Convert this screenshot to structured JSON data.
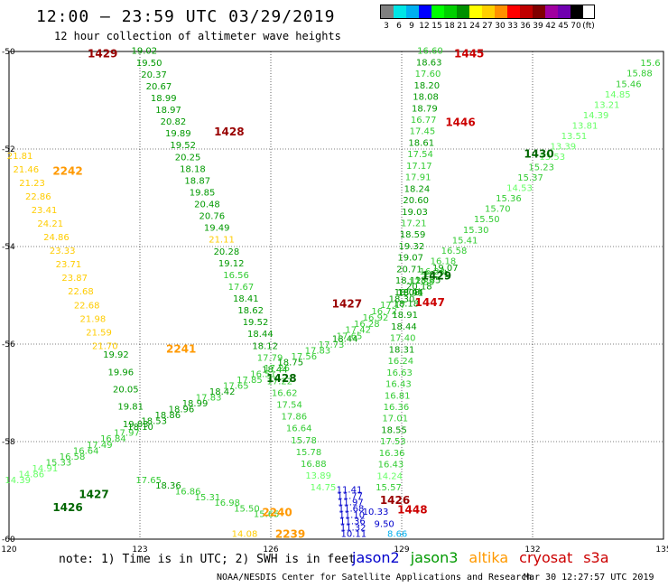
{
  "header": {
    "title": "12:00 — 23:59 UTC 03/29/2019",
    "subtitle": "12 hour collection of altimeter wave heights"
  },
  "colorbar": {
    "colors": [
      "#808080",
      "#00e6e6",
      "#00b0f0",
      "#0000ff",
      "#00ff00",
      "#00d000",
      "#009000",
      "#ffff00",
      "#ffd000",
      "#ff9000",
      "#ff0000",
      "#c00000",
      "#800000",
      "#a000a0",
      "#7000b0",
      "#000000"
    ],
    "labels": [
      "3",
      "6",
      "9",
      "12",
      "15",
      "18",
      "21",
      "24",
      "27",
      "30",
      "33",
      "36",
      "39",
      "42",
      "45",
      "70",
      "(ft)"
    ]
  },
  "footer": {
    "note": "note: 1) Time is in UTC; 2) SWH is in feet",
    "credit": "NOAA/NESDIS Center for Satellite Applications and Research",
    "timestamp": "Mar 30 12:27:57 UTC 2019",
    "satellites": [
      {
        "name": "jason2",
        "color": "#0000cc"
      },
      {
        "name": "jason3",
        "color": "#009900"
      },
      {
        "name": "altika",
        "color": "#ff9900"
      },
      {
        "name": "cryosat",
        "color": "#cc0000"
      },
      {
        "name": "s3a",
        "color": "#cc0000"
      }
    ]
  },
  "chart_data": {
    "type": "scatter",
    "xlim": [
      120,
      135
    ],
    "ylim": [
      -60,
      -50
    ],
    "x_ticks": [
      "120",
      "123",
      "126",
      "129",
      "132",
      "135"
    ],
    "y_ticks": [
      "-50",
      "-52",
      "-54",
      "-56",
      "-58",
      "-60"
    ],
    "grid": true,
    "tracks": [
      {
        "label": "1429",
        "label_color": "#990000",
        "label_pos": [
          121.8,
          -50.05
        ],
        "start": [
          123.1,
          -50.05
        ],
        "end": [
          127.2,
          -59.0
        ],
        "color": "#009900",
        "values": [
          "19.02",
          "19.50",
          "20.37",
          "20.67",
          "18.99",
          "18.97",
          "20.82",
          "19.89",
          "19.52",
          "20.25",
          "18.18",
          "18.87",
          "19.85",
          "20.48",
          "20.76",
          "19.49",
          "21.11",
          "20.28",
          "19.12",
          "16.56",
          "17.67",
          "18.41",
          "18.62",
          "19.52",
          "18.44",
          "18.12",
          "17.79",
          "18.44",
          "17.22",
          "16.62",
          "17.54",
          "17.86",
          "16.64",
          "15.78",
          "15.78",
          "16.88",
          "13.89",
          "14.75"
        ]
      },
      {
        "label": "1428",
        "label_color": "#990000",
        "label_pos": [
          124.7,
          -51.65
        ],
        "start": [
          120.2,
          -58.85
        ],
        "end": [
          127.7,
          -55.95
        ],
        "color": "#009900",
        "values": [
          "14.39",
          "14.86",
          "14.91",
          "15.33",
          "16.58",
          "16.64",
          "17.49",
          "16.84",
          "17.97",
          "18.10",
          "18.53",
          "18.86",
          "18.96",
          "18.99",
          "17.83",
          "18.42",
          "17.65",
          "17.85",
          "16.51",
          "17.26",
          "18.75",
          "17.56",
          "17.83",
          "17.73",
          "18.44"
        ]
      },
      {
        "label": "1427",
        "label_color": "#990000",
        "label_pos": [
          127.4,
          -55.18
        ],
        "start": [
          127.8,
          -55.9
        ],
        "end": [
          130.0,
          -54.5
        ],
        "color": "#33cc33",
        "values": [
          "17.65",
          "17.42",
          "16.28",
          "16.92",
          "16.72",
          "17.17",
          "18.30",
          "18.91",
          "20.18",
          "18.85",
          "20.71",
          "19.07"
        ]
      },
      {
        "label": "1445",
        "label_color": "#cc0000",
        "label_pos": [
          130.2,
          -50.05
        ],
        "start": [
          129.65,
          -50.05
        ],
        "end": [
          128.7,
          -59.0
        ],
        "color": "#009900",
        "values": [
          "16.60",
          "18.63",
          "17.60",
          "18.20",
          "18.08",
          "18.79",
          "16.77",
          "17.45",
          "18.61",
          "17.54",
          "17.17",
          "17.91",
          "18.24",
          "20.60",
          "19.03",
          "17.21",
          "18.59",
          "19.32",
          "19.07",
          "20.71",
          "18.12",
          "18.03",
          "18.18",
          "18.91",
          "18.44",
          "17.40",
          "18.31",
          "16.24",
          "16.63",
          "16.43",
          "16.81",
          "16.36",
          "17.01",
          "18.55",
          "17.53",
          "16.36",
          "16.43",
          "14.24",
          "15.57"
        ]
      },
      {
        "label": "1430",
        "label_color": "#006600",
        "label_pos": [
          131.8,
          -52.1
        ],
        "start": [
          129.2,
          -55.0
        ],
        "end": [
          134.7,
          -50.3
        ],
        "color": "#33cc33",
        "values": [
          "18.44",
          "17.88",
          "16.23",
          "16.18",
          "16.58",
          "15.41",
          "15.30",
          "15.50",
          "15.70",
          "15.36",
          "14.53",
          "15.37",
          "15.23",
          "13.53",
          "13.39",
          "13.51",
          "13.81",
          "14.39",
          "13.21",
          "14.85",
          "15.46",
          "15.88",
          "15.6"
        ]
      },
      {
        "label": "2242",
        "label_color": "#ff9900",
        "label_pos": [
          121.0,
          -52.45
        ],
        "start": [
          120.25,
          -52.2
        ],
        "end": [
          122.2,
          -56.1
        ],
        "color": "#ffcc00",
        "values": [
          "21.81",
          "21.46",
          "21.23",
          "22.86",
          "23.41",
          "24.21",
          "24.86",
          "23.33",
          "23.71",
          "23.87",
          "22.68",
          "22.68",
          "21.98",
          "21.59",
          "21.70"
        ]
      },
      {
        "label": "2240",
        "label_color": "#ff9900",
        "label_pos": [
          125.8,
          -59.45
        ],
        "start": [
          123.2,
          -58.85
        ],
        "end": [
          125.9,
          -59.55
        ],
        "color": "#009900",
        "values": [
          "17.65",
          "18.36",
          "16.86",
          "15.31",
          "16.98",
          "15.50",
          "15.65"
        ]
      },
      {
        "label": "2241",
        "label_color": "#ff9900",
        "label_pos": [
          123.6,
          -56.1
        ],
        "start": [
          122.45,
          -56.28
        ],
        "end": [
          122.9,
          -57.7
        ],
        "color": "#009900",
        "values": [
          "19.92",
          "19.96",
          "20.05",
          "19.81",
          "19.83"
        ]
      },
      {
        "label": "1426",
        "label_color": "#006600",
        "label_pos": [
          121.0,
          -59.35
        ],
        "start": [
          0,
          0
        ],
        "end": [
          0,
          0
        ],
        "color": "#009900",
        "values": []
      },
      {
        "label": "1427",
        "label_color": "#006600",
        "label_pos": [
          121.6,
          -59.08
        ],
        "start": [
          0,
          0
        ],
        "end": [
          0,
          0
        ],
        "color": "#009900",
        "values": []
      },
      {
        "label": "1428",
        "label_color": "#006600",
        "label_pos": [
          125.9,
          -56.7
        ],
        "start": [
          0,
          0
        ],
        "end": [
          0,
          0
        ],
        "color": "#009900",
        "values": []
      },
      {
        "label": "1429",
        "label_color": "#006600",
        "label_pos": [
          129.45,
          -54.6
        ],
        "start": [
          0,
          0
        ],
        "end": [
          0,
          0
        ],
        "color": "#009900",
        "values": []
      },
      {
        "label": "1446",
        "label_color": "#cc0000",
        "label_pos": [
          130.0,
          -51.45
        ],
        "start": [
          0,
          0
        ],
        "end": [
          0,
          0
        ],
        "color": "#009900",
        "values": []
      },
      {
        "label": "1447",
        "label_color": "#cc0000",
        "label_pos": [
          129.3,
          -55.15
        ],
        "start": [
          0,
          0
        ],
        "end": [
          0,
          0
        ],
        "color": "#009900",
        "values": []
      },
      {
        "label": "1448",
        "label_color": "#cc0000",
        "label_pos": [
          128.9,
          -59.4
        ],
        "start": [
          0,
          0
        ],
        "end": [
          0,
          0
        ],
        "color": "#009900",
        "values": []
      },
      {
        "label": "1426",
        "label_color": "#990000",
        "label_pos": [
          128.5,
          -59.2
        ],
        "start": [
          0,
          0
        ],
        "end": [
          0,
          0
        ],
        "color": "#009900",
        "values": []
      },
      {
        "label": "2239",
        "label_color": "#ff9900",
        "label_pos": [
          126.1,
          -59.9
        ],
        "start": [
          0,
          0
        ],
        "end": [
          0,
          0
        ],
        "color": "#009900",
        "values": []
      }
    ],
    "jason2_values": [
      "11.41",
      "11.77",
      "11.97",
      "11.68",
      "11.10",
      "11.36",
      "11.32",
      "10.11"
    ],
    "jason2_start": [
      127.8,
      -59.05
    ],
    "jason2_end": [
      127.9,
      -59.95
    ],
    "extra_values": [
      {
        "v": "9.50",
        "pos": [
          128.6,
          -59.75
        ],
        "color": "#0000cc"
      },
      {
        "v": "8.66",
        "pos": [
          128.9,
          -59.95
        ],
        "color": "#00b0f0"
      },
      {
        "v": "10.33",
        "pos": [
          128.4,
          -59.5
        ],
        "color": "#0000cc"
      },
      {
        "v": "14.08",
        "pos": [
          125.4,
          -59.95
        ],
        "color": "#ffcc00"
      }
    ]
  }
}
